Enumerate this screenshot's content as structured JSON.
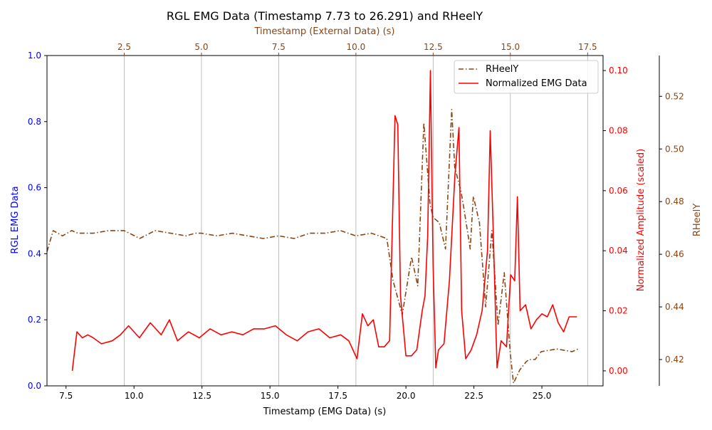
{
  "chart_data": {
    "type": "line",
    "title": "RGL EMG Data (Timestamp 7.73 to 26.291) and RHeelY",
    "xlabel": "Timestamp (EMG Data) (s)",
    "x2label": "Timestamp (External Data) (s)",
    "ylabel_left": "RGL EMG Data",
    "ylabel_right_inner": "Normalized Amplitude (scaled)",
    "ylabel_right_outer": "RHeelY",
    "xlim": [
      6.8,
      27.25
    ],
    "x2lim": [
      0.0,
      18.0
    ],
    "ylim_left": [
      0.0,
      1.0
    ],
    "ylim_right_inner": [
      -0.005,
      0.105
    ],
    "ylim_right_outer": [
      0.41,
      0.5355
    ],
    "x_ticks": [
      "7.5",
      "10.0",
      "12.5",
      "15.0",
      "17.5",
      "20.0",
      "22.5",
      "25.0"
    ],
    "x_tick_values": [
      7.5,
      10.0,
      12.5,
      15.0,
      17.5,
      20.0,
      22.5,
      25.0
    ],
    "x2_ticks": [
      "2.5",
      "5.0",
      "7.5",
      "10.0",
      "12.5",
      "15.0",
      "17.5"
    ],
    "x2_tick_values": [
      2.5,
      5.0,
      7.5,
      10.0,
      12.5,
      15.0,
      17.5
    ],
    "y_left_ticks": [
      "0.0",
      "0.2",
      "0.4",
      "0.6",
      "0.8",
      "1.0"
    ],
    "y_left_tick_values": [
      0.0,
      0.2,
      0.4,
      0.6,
      0.8,
      1.0
    ],
    "y_inner_ticks": [
      "0.00",
      "0.02",
      "0.04",
      "0.06",
      "0.08",
      "0.10"
    ],
    "y_inner_tick_values": [
      0.0,
      0.02,
      0.04,
      0.06,
      0.08,
      0.1
    ],
    "y_outer_ticks": [
      "0.42",
      "0.44",
      "0.46",
      "0.48",
      "0.50",
      "0.52"
    ],
    "y_outer_tick_values": [
      0.42,
      0.44,
      0.46,
      0.48,
      0.5,
      0.52
    ],
    "grid": "vertical lines at external-data ticks",
    "legend_position": "top-right",
    "colors": {
      "emg": "#ff0000",
      "heel": "#8b4513",
      "left_axis": "#0000ff",
      "grid": "#b0b0b0",
      "text": "#000000"
    },
    "series": [
      {
        "name": "RHeelY",
        "axis": "right_outer",
        "x_axis": "top",
        "style": "dash-dot",
        "x": [
          0.0,
          0.2,
          0.5,
          0.8,
          1.0,
          1.5,
          2.0,
          2.5,
          3.0,
          3.5,
          4.0,
          4.5,
          4.8,
          5.0,
          5.5,
          6.0,
          6.5,
          7.0,
          7.5,
          8.0,
          8.5,
          9.0,
          9.5,
          10.0,
          10.5,
          11.0,
          11.2,
          11.5,
          11.8,
          12.0,
          12.2,
          12.4,
          12.5,
          12.7,
          12.9,
          13.1,
          13.2,
          13.4,
          13.5,
          13.7,
          13.8,
          14.0,
          14.2,
          14.4,
          14.6,
          14.8,
          15.0,
          15.1,
          15.3,
          15.5,
          15.6,
          15.8,
          16.0,
          16.5,
          17.0,
          17.2
        ],
        "values": [
          0.461,
          0.469,
          0.467,
          0.469,
          0.468,
          0.468,
          0.469,
          0.469,
          0.466,
          0.469,
          0.468,
          0.467,
          0.468,
          0.468,
          0.467,
          0.468,
          0.467,
          0.466,
          0.467,
          0.466,
          0.468,
          0.468,
          0.469,
          0.467,
          0.468,
          0.466,
          0.45,
          0.437,
          0.459,
          0.448,
          0.51,
          0.479,
          0.474,
          0.472,
          0.462,
          0.515,
          0.493,
          0.484,
          0.477,
          0.462,
          0.482,
          0.472,
          0.44,
          0.469,
          0.433,
          0.453,
          0.422,
          0.411,
          0.416,
          0.419,
          0.42,
          0.42,
          0.423,
          0.424,
          0.423,
          0.424
        ]
      },
      {
        "name": "Normalized EMG Data",
        "axis": "right_inner",
        "x_axis": "bottom",
        "style": "solid",
        "x": [
          7.73,
          7.9,
          8.1,
          8.3,
          8.5,
          8.8,
          9.2,
          9.5,
          9.8,
          10.2,
          10.6,
          11.0,
          11.3,
          11.6,
          12.0,
          12.4,
          12.8,
          13.2,
          13.6,
          14.0,
          14.4,
          14.8,
          15.2,
          15.6,
          16.0,
          16.4,
          16.8,
          17.2,
          17.6,
          17.9,
          18.2,
          18.4,
          18.6,
          18.8,
          19.0,
          19.2,
          19.4,
          19.6,
          19.7,
          19.8,
          20.0,
          20.2,
          20.4,
          20.6,
          20.7,
          20.8,
          20.9,
          21.0,
          21.1,
          21.2,
          21.4,
          21.6,
          21.8,
          21.95,
          22.05,
          22.2,
          22.4,
          22.6,
          22.8,
          23.0,
          23.1,
          23.2,
          23.35,
          23.5,
          23.7,
          23.85,
          24.0,
          24.1,
          24.2,
          24.4,
          24.6,
          24.8,
          25.0,
          25.2,
          25.4,
          25.6,
          25.8,
          26.0,
          26.2,
          26.29
        ],
        "values": [
          0.0,
          0.013,
          0.011,
          0.012,
          0.011,
          0.009,
          0.01,
          0.012,
          0.015,
          0.011,
          0.016,
          0.012,
          0.017,
          0.01,
          0.013,
          0.011,
          0.014,
          0.012,
          0.013,
          0.012,
          0.014,
          0.014,
          0.015,
          0.012,
          0.01,
          0.013,
          0.014,
          0.011,
          0.012,
          0.01,
          0.004,
          0.019,
          0.015,
          0.017,
          0.008,
          0.008,
          0.01,
          0.085,
          0.082,
          0.025,
          0.005,
          0.005,
          0.007,
          0.02,
          0.025,
          0.045,
          0.1,
          0.035,
          0.001,
          0.007,
          0.009,
          0.03,
          0.065,
          0.081,
          0.02,
          0.004,
          0.007,
          0.012,
          0.02,
          0.04,
          0.08,
          0.05,
          0.001,
          0.01,
          0.008,
          0.032,
          0.03,
          0.058,
          0.02,
          0.022,
          0.014,
          0.017,
          0.019,
          0.018,
          0.022,
          0.016,
          0.013,
          0.018,
          0.018,
          0.018
        ]
      }
    ]
  }
}
